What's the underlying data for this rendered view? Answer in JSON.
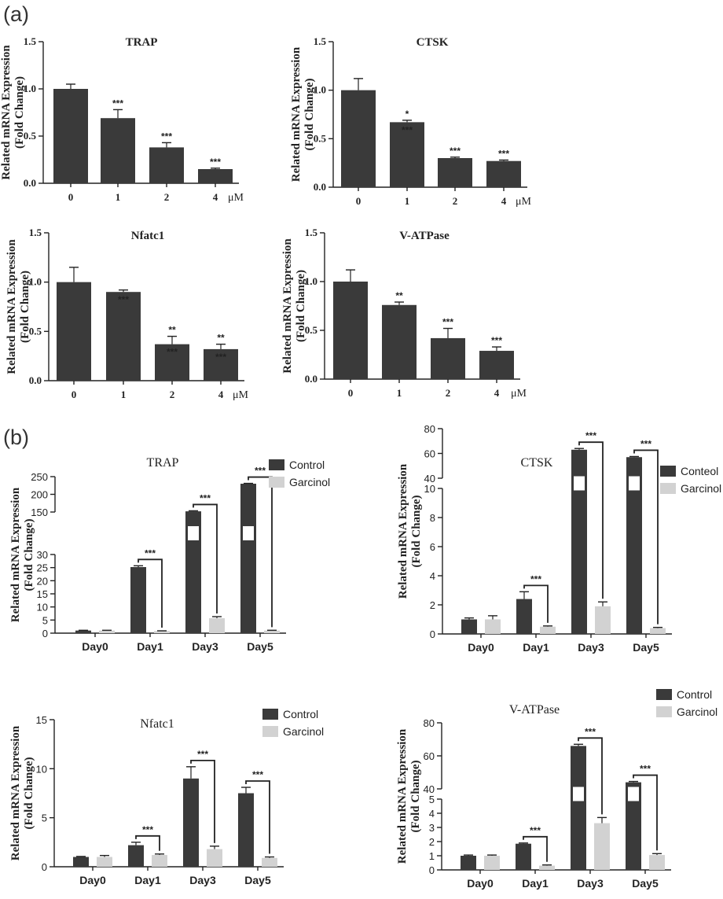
{
  "colors": {
    "dark": "#3a3a3a",
    "light": "#d2d2d2",
    "axis": "#222222"
  },
  "panel_labels": [
    "(a)",
    "(b)"
  ],
  "chart_data": [
    {
      "panel": "a",
      "type": "bar",
      "title": "TRAP",
      "ylabel": [
        "Related mRNA Expression",
        "(Fold Change)"
      ],
      "categories": [
        "0",
        "1",
        "2",
        "4"
      ],
      "unit": "μM",
      "ylim": [
        0,
        1.5
      ],
      "yticks": [
        "0.0",
        "0.5",
        "1.0",
        "1.5"
      ],
      "values": [
        1.0,
        0.69,
        0.38,
        0.15
      ],
      "errors": [
        0.05,
        0.09,
        0.05,
        0.01
      ],
      "labels": [
        [
          "",
          ""
        ],
        [
          "***",
          ""
        ],
        [
          "***",
          ""
        ],
        [
          "***",
          ""
        ]
      ]
    },
    {
      "panel": "a",
      "type": "bar",
      "title": "CTSK",
      "ylabel": [
        "Related mRNA Expression",
        "(Fold Change)"
      ],
      "categories": [
        "0",
        "1",
        "2",
        "4"
      ],
      "unit": "μM",
      "ylim": [
        0,
        1.5
      ],
      "yticks": [
        "0.0",
        "0.5",
        "1.0",
        "1.5"
      ],
      "values": [
        1.0,
        0.67,
        0.3,
        0.27
      ],
      "errors": [
        0.12,
        0.02,
        0.01,
        0.01
      ],
      "labels": [
        [
          "",
          ""
        ],
        [
          "*",
          "***"
        ],
        [
          "***",
          ""
        ],
        [
          "***",
          ""
        ]
      ]
    },
    {
      "panel": "a",
      "type": "bar",
      "title": "Nfatc1",
      "ylabel": [
        "Related mRNA Expression",
        "(Fold Change)"
      ],
      "categories": [
        "0",
        "1",
        "2",
        "4"
      ],
      "unit": "μM",
      "ylim": [
        0,
        1.5
      ],
      "yticks": [
        "0.0",
        "0.5",
        "1.0",
        "1.5"
      ],
      "values": [
        1.0,
        0.9,
        0.37,
        0.32
      ],
      "errors": [
        0.15,
        0.02,
        0.08,
        0.05
      ],
      "labels": [
        [
          "",
          ""
        ],
        [
          "",
          "***"
        ],
        [
          "**",
          "***"
        ],
        [
          "**",
          "***"
        ]
      ]
    },
    {
      "panel": "a",
      "type": "bar",
      "title": "V-ATPase",
      "ylabel": [
        "Related mRNA Expression",
        "(Fold Change)"
      ],
      "categories": [
        "0",
        "1",
        "2",
        "4"
      ],
      "unit": "μM",
      "ylim": [
        0,
        1.5
      ],
      "yticks": [
        "0.0",
        "0.5",
        "1.0",
        "1.5"
      ],
      "values": [
        1.0,
        0.76,
        0.42,
        0.29
      ],
      "errors": [
        0.12,
        0.03,
        0.1,
        0.04
      ],
      "labels": [
        [
          "",
          ""
        ],
        [
          "**",
          ""
        ],
        [
          "***",
          ""
        ],
        [
          "***",
          ""
        ]
      ]
    },
    {
      "panel": "b",
      "type": "bar",
      "title": "TRAP",
      "ylabel": [
        "Related mRNA Expression",
        "(Fold Change)"
      ],
      "categories": [
        "Day0",
        "Day1",
        "Day3",
        "Day5"
      ],
      "broken_axis": true,
      "lower_range": [
        0,
        30
      ],
      "lower_ticks": [
        "0",
        "5",
        "10",
        "15",
        "20",
        "25",
        "30"
      ],
      "upper_range": [
        150,
        250
      ],
      "upper_ticks": [
        "150",
        "200",
        "250"
      ],
      "series": [
        {
          "name": "Control",
          "values": [
            1.0,
            25.2,
            152,
            230
          ],
          "errors": [
            0.1,
            0.5,
            1.5,
            1.0
          ]
        },
        {
          "name": "Garcinol",
          "values": [
            1.0,
            0.8,
            5.7,
            1.0
          ],
          "errors": [
            0.1,
            0.1,
            0.6,
            0.1
          ]
        }
      ],
      "significance": [
        "",
        "***",
        "***",
        "***"
      ]
    },
    {
      "panel": "b",
      "type": "bar",
      "title": "CTSK",
      "ylabel": [
        "Related mRNA Expression",
        "(Fold Change)"
      ],
      "categories": [
        "Day0",
        "Day1",
        "Day3",
        "Day5"
      ],
      "broken_axis": true,
      "lower_range": [
        0,
        10
      ],
      "lower_ticks": [
        "0",
        "2",
        "4",
        "6",
        "8",
        "10"
      ],
      "upper_range": [
        40,
        80
      ],
      "upper_ticks": [
        "40",
        "60",
        "80"
      ],
      "series": [
        {
          "name": "Conteol",
          "values": [
            1.0,
            2.4,
            63,
            57
          ],
          "errors": [
            0.1,
            0.5,
            1.0,
            0.5
          ]
        },
        {
          "name": "Garcinol",
          "values": [
            1.0,
            0.5,
            1.9,
            0.4
          ],
          "errors": [
            0.25,
            0.05,
            0.3,
            0.05
          ]
        }
      ],
      "significance": [
        "",
        "***",
        "***",
        "***"
      ]
    },
    {
      "panel": "b",
      "type": "bar",
      "title": "Nfatc1",
      "ylabel": [
        "Related mRNA Expression",
        "(Fold Change)"
      ],
      "categories": [
        "Day0",
        "Day1",
        "Day3",
        "Day5"
      ],
      "broken_axis": false,
      "ylim": [
        0,
        15
      ],
      "yticks": [
        "0",
        "5",
        "10",
        "15"
      ],
      "series": [
        {
          "name": "Control",
          "values": [
            1.0,
            2.2,
            9.0,
            7.5
          ],
          "errors": [
            0.05,
            0.3,
            1.2,
            0.6
          ]
        },
        {
          "name": "Garcinol",
          "values": [
            1.0,
            1.2,
            1.8,
            0.9
          ],
          "errors": [
            0.15,
            0.1,
            0.3,
            0.1
          ]
        }
      ],
      "significance": [
        "",
        "***",
        "***",
        "***"
      ]
    },
    {
      "panel": "b",
      "type": "bar",
      "title": "V-ATPase",
      "ylabel": [
        "Related mRNA Expression",
        "(Fold Change)"
      ],
      "categories": [
        "Day0",
        "Day1",
        "Day3",
        "Day5"
      ],
      "broken_axis": true,
      "lower_range": [
        0,
        5
      ],
      "lower_ticks": [
        "0",
        "1",
        "2",
        "3",
        "4",
        "5"
      ],
      "upper_range": [
        40,
        80
      ],
      "upper_ticks": [
        "40",
        "60",
        "80"
      ],
      "series": [
        {
          "name": "Control",
          "values": [
            1.0,
            1.85,
            66,
            44
          ],
          "errors": [
            0.05,
            0.05,
            1.0,
            0.5
          ]
        },
        {
          "name": "Garcinol",
          "values": [
            1.0,
            0.3,
            3.3,
            1.05
          ],
          "errors": [
            0.05,
            0.05,
            0.4,
            0.1
          ]
        }
      ],
      "significance": [
        "",
        "***",
        "***",
        "***"
      ]
    }
  ]
}
